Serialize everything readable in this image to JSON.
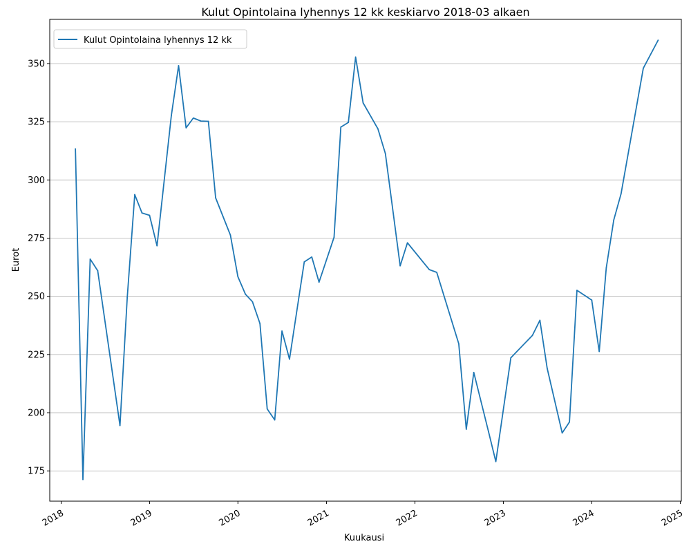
{
  "chart_data": {
    "type": "line",
    "title": "Kulut Opintolaina lyhennys 12 kk keskiarvo 2018-03 alkaen",
    "xlabel": "Kuukausi",
    "ylabel": "Eurot",
    "xlim": [
      "2017-11-15",
      "2025-01-05"
    ],
    "ylim": [
      162,
      369
    ],
    "x_ticks": [
      "2018",
      "2019",
      "2020",
      "2021",
      "2022",
      "2023",
      "2024",
      "2025"
    ],
    "y_ticks": [
      175,
      200,
      225,
      250,
      275,
      300,
      325,
      350
    ],
    "grid": "y-major",
    "legend": "top-left",
    "colors": {
      "line": "#1f77b4",
      "grid": "#b0b0b0",
      "axes": "#000000"
    },
    "series": [
      {
        "name": "Kulut Opintolaina lyhennys 12 kk",
        "x": [
          "2018-03-01",
          "2018-04-01",
          "2018-05-01",
          "2018-06-01",
          "2018-09-01",
          "2018-10-01",
          "2018-11-01",
          "2018-12-01",
          "2019-01-01",
          "2019-02-01",
          "2019-04-01",
          "2019-05-01",
          "2019-06-01",
          "2019-07-01",
          "2019-08-01",
          "2019-09-01",
          "2019-10-01",
          "2019-12-01",
          "2020-01-01",
          "2020-02-01",
          "2020-03-01",
          "2020-04-01",
          "2020-05-01",
          "2020-06-01",
          "2020-07-01",
          "2020-08-01",
          "2020-10-01",
          "2020-11-01",
          "2020-12-01",
          "2021-02-01",
          "2021-03-01",
          "2021-04-01",
          "2021-05-01",
          "2021-06-01",
          "2021-08-01",
          "2021-09-01",
          "2021-11-01",
          "2021-12-01",
          "2022-03-01",
          "2022-04-01",
          "2022-07-01",
          "2022-08-01",
          "2022-09-01",
          "2022-11-01",
          "2022-12-01",
          "2023-02-01",
          "2023-05-01",
          "2023-06-01",
          "2023-07-01",
          "2023-09-01",
          "2023-10-01",
          "2023-11-01",
          "2024-01-01",
          "2024-02-01",
          "2024-03-01",
          "2024-04-01",
          "2024-05-01",
          "2024-08-01",
          "2024-10-01"
        ],
        "values": [
          313.3,
          171.3,
          266.0,
          261.0,
          194.5,
          249.5,
          293.7,
          285.8,
          284.8,
          271.7,
          327.6,
          349.1,
          322.4,
          326.6,
          325.3,
          325.2,
          292.3,
          276.3,
          258.4,
          250.9,
          247.7,
          238.3,
          201.6,
          196.9,
          235.1,
          223.0,
          264.8,
          266.9,
          256.1,
          275.4,
          322.7,
          324.7,
          352.8,
          333.1,
          322.0,
          311.3,
          263.1,
          273.0,
          261.5,
          260.3,
          229.6,
          192.9,
          217.3,
          191.8,
          179.0,
          223.6,
          233.2,
          239.7,
          219.1,
          191.3,
          196.0,
          252.6,
          248.4,
          226.3,
          262.2,
          282.8,
          294.0,
          348.0,
          360.0
        ]
      }
    ]
  }
}
